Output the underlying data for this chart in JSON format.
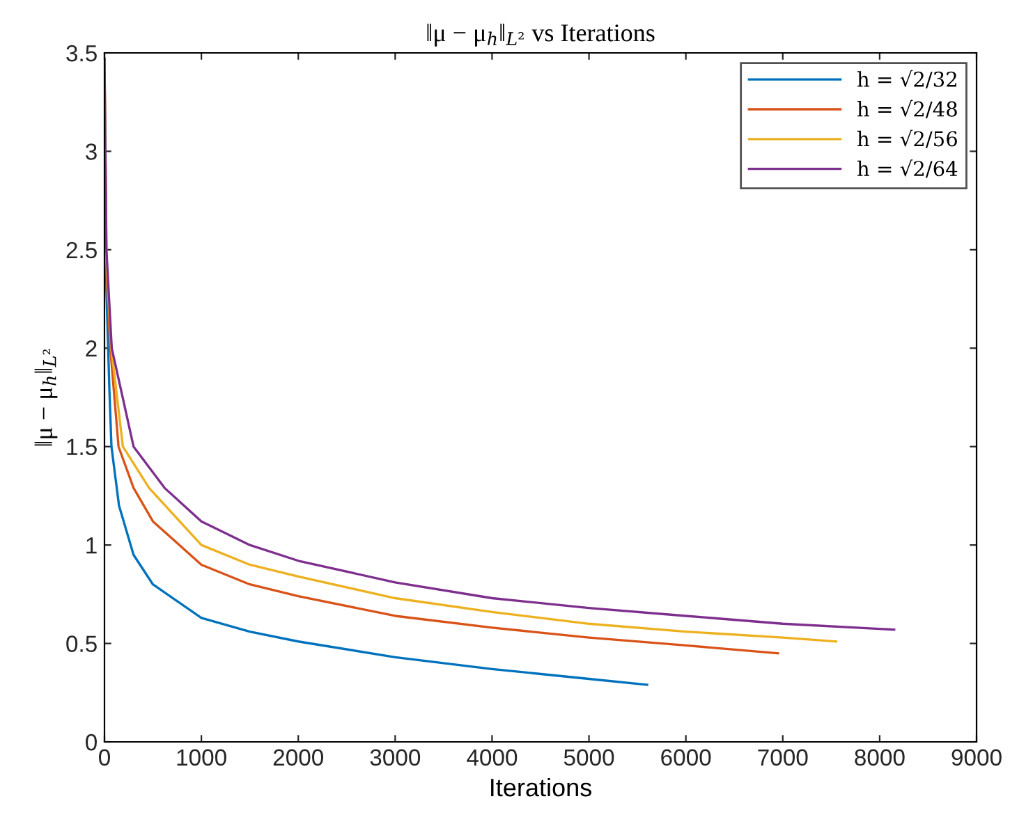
{
  "chart_data": {
    "type": "line",
    "title": "‖μ − μ$_{h}$‖$_{L²}$ vs Iterations",
    "xlabel": "Iterations",
    "ylabel": "‖μ − μ$_{h}$‖$_{L²}$",
    "xlim": [
      0,
      9000
    ],
    "xticks": [
      0,
      1000,
      2000,
      3000,
      4000,
      5000,
      6000,
      7000,
      8000,
      9000
    ],
    "ylim": [
      0,
      3.5
    ],
    "yticks": [
      0,
      0.5,
      1,
      1.5,
      2,
      2.5,
      3,
      3.5
    ],
    "grid": false,
    "legend": "top right",
    "marker": "none",
    "line_style": "solid",
    "series": [
      {
        "name": "h = √2/32",
        "color": "#0072bd",
        "x": [
          0,
          20,
          50,
          72,
          150,
          300,
          500,
          1000,
          1500,
          2000,
          3000,
          4000,
          5000,
          5600
        ],
        "values": [
          3.3,
          2.3,
          1.8,
          1.5,
          1.2,
          0.95,
          0.8,
          0.63,
          0.56,
          0.51,
          0.43,
          0.37,
          0.32,
          0.29
        ]
      },
      {
        "name": "h = √2/48",
        "color": "#d95319",
        "x": [
          0,
          20,
          60,
          145,
          300,
          500,
          1000,
          1500,
          2000,
          3000,
          4000,
          5000,
          6000,
          6950
        ],
        "values": [
          3.47,
          2.4,
          2.0,
          1.5,
          1.29,
          1.12,
          0.9,
          0.8,
          0.74,
          0.64,
          0.58,
          0.53,
          0.49,
          0.45
        ]
      },
      {
        "name": "h = √2/56",
        "color": "#edb120",
        "x": [
          0,
          20,
          70,
          190,
          460,
          1000,
          1500,
          2000,
          3000,
          4000,
          5000,
          6000,
          7000,
          7550
        ],
        "values": [
          3.47,
          2.45,
          2.0,
          1.5,
          1.29,
          1.0,
          0.9,
          0.84,
          0.73,
          0.66,
          0.6,
          0.56,
          0.53,
          0.51
        ]
      },
      {
        "name": "h = √2/64",
        "color": "#7e2f8e",
        "x": [
          0,
          20,
          75,
          300,
          620,
          1000,
          1500,
          2000,
          3000,
          4000,
          5000,
          6000,
          7000,
          8150
        ],
        "values": [
          3.47,
          2.5,
          2.0,
          1.5,
          1.29,
          1.12,
          1.0,
          0.92,
          0.81,
          0.73,
          0.68,
          0.64,
          0.6,
          0.57
        ]
      }
    ]
  }
}
